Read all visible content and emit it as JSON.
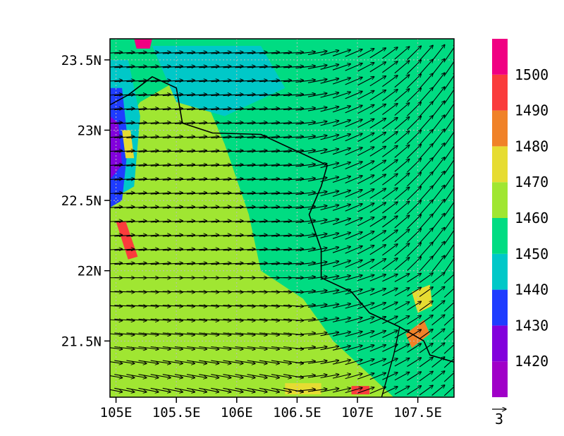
{
  "map": {
    "extent": {
      "lon_min": 104.95,
      "lon_max": 107.8,
      "lat_min": 21.1,
      "lat_max": 23.65
    },
    "x_ticks": [
      {
        "value": 105.0,
        "label": "105E"
      },
      {
        "value": 105.5,
        "label": "105.5E"
      },
      {
        "value": 106.0,
        "label": "106E"
      },
      {
        "value": 106.5,
        "label": "106.5E"
      },
      {
        "value": 107.0,
        "label": "107E"
      },
      {
        "value": 107.5,
        "label": "107.5E"
      }
    ],
    "y_ticks": [
      {
        "value": 21.5,
        "label": "21.5N"
      },
      {
        "value": 22.0,
        "label": "22N"
      },
      {
        "value": 22.5,
        "label": "22.5N"
      },
      {
        "value": 23.0,
        "label": "23N"
      },
      {
        "value": 23.5,
        "label": "23.5N"
      }
    ],
    "grid": true,
    "fill": {
      "levels": [
        {
          "label": "1420",
          "color": "#a000c8"
        },
        {
          "label": "1430",
          "color": "#8200dc"
        },
        {
          "label": "1440",
          "color": "#1e3cff"
        },
        {
          "label": "1450",
          "color": "#00c8c8"
        },
        {
          "label": "1460",
          "color": "#00dc82"
        },
        {
          "label": "1470",
          "color": "#a0e632"
        },
        {
          "label": "1480",
          "color": "#e6dc32"
        },
        {
          "label": "1490",
          "color": "#f08228"
        },
        {
          "label": "1500",
          "color": "#fa3c3c"
        },
        {
          "label": "",
          "color": "#f00082"
        }
      ],
      "base_color": "#a0e632",
      "regions": [
        {
          "name": "east-1450-zone",
          "color": "#00dc82",
          "poly": [
            [
              106.0,
              23.65
            ],
            [
              107.8,
              23.65
            ],
            [
              107.8,
              21.1
            ],
            [
              107.3,
              21.1
            ],
            [
              106.8,
              21.5
            ],
            [
              106.55,
              21.8
            ],
            [
              106.2,
              22.0
            ],
            [
              106.1,
              22.4
            ],
            [
              105.9,
              22.9
            ],
            [
              105.7,
              23.3
            ],
            [
              105.6,
              23.65
            ]
          ]
        },
        {
          "name": "north-1450-band",
          "color": "#00dc82",
          "poly": [
            [
              104.95,
              23.65
            ],
            [
              106.0,
              23.65
            ],
            [
              105.6,
              23.4
            ],
            [
              105.2,
              23.2
            ],
            [
              104.95,
              22.9
            ]
          ]
        },
        {
          "name": "north-cyan-area",
          "color": "#00c8c8",
          "poly": [
            [
              105.3,
              23.6
            ],
            [
              106.2,
              23.6
            ],
            [
              106.4,
              23.3
            ],
            [
              105.9,
              23.1
            ],
            [
              105.5,
              23.2
            ]
          ]
        },
        {
          "name": "west-edge-cyan",
          "color": "#00c8c8",
          "poly": [
            [
              104.95,
              23.5
            ],
            [
              105.1,
              23.5
            ],
            [
              105.2,
              23.1
            ],
            [
              105.15,
              22.6
            ],
            [
              104.95,
              22.5
            ]
          ]
        },
        {
          "name": "west-edge-blue",
          "color": "#1e3cff",
          "poly": [
            [
              104.95,
              23.3
            ],
            [
              105.05,
              23.3
            ],
            [
              105.1,
              22.9
            ],
            [
              105.05,
              22.5
            ],
            [
              104.95,
              22.45
            ]
          ]
        },
        {
          "name": "west-edge-purple",
          "color": "#8200dc",
          "poly": [
            [
              104.95,
              23.1
            ],
            [
              105.02,
              23.05
            ],
            [
              105.05,
              22.75
            ],
            [
              104.95,
              22.65
            ]
          ]
        },
        {
          "name": "west-red-streak",
          "color": "#fa3c3c",
          "poly": [
            [
              105.0,
              22.35
            ],
            [
              105.08,
              22.35
            ],
            [
              105.18,
              22.1
            ],
            [
              105.1,
              22.08
            ]
          ]
        },
        {
          "name": "west-yellow-streak",
          "color": "#e6dc32",
          "poly": [
            [
              105.05,
              23.0
            ],
            [
              105.12,
              23.0
            ],
            [
              105.15,
              22.8
            ],
            [
              105.08,
              22.8
            ]
          ]
        },
        {
          "name": "se-orange-spot",
          "color": "#f08228",
          "poly": [
            [
              107.4,
              21.55
            ],
            [
              107.55,
              21.65
            ],
            [
              107.6,
              21.55
            ],
            [
              107.45,
              21.45
            ]
          ]
        },
        {
          "name": "se-yellow-spot",
          "color": "#e6dc32",
          "poly": [
            [
              107.45,
              21.85
            ],
            [
              107.6,
              21.9
            ],
            [
              107.62,
              21.75
            ],
            [
              107.5,
              21.7
            ]
          ]
        },
        {
          "name": "south-yellow-spot",
          "color": "#e6dc32",
          "poly": [
            [
              106.4,
              21.2
            ],
            [
              106.7,
              21.2
            ],
            [
              106.7,
              21.12
            ],
            [
              106.4,
              21.12
            ]
          ]
        },
        {
          "name": "south-red-spot",
          "color": "#fa3c3c",
          "poly": [
            [
              106.95,
              21.18
            ],
            [
              107.1,
              21.18
            ],
            [
              107.1,
              21.12
            ],
            [
              106.95,
              21.12
            ]
          ]
        },
        {
          "name": "north-magenta-spot",
          "color": "#f00082",
          "poly": [
            [
              105.15,
              23.65
            ],
            [
              105.3,
              23.65
            ],
            [
              105.28,
              23.58
            ],
            [
              105.17,
              23.58
            ]
          ]
        }
      ]
    },
    "border": [
      [
        104.95,
        23.18
      ],
      [
        105.1,
        23.25
      ],
      [
        105.3,
        23.38
      ],
      [
        105.5,
        23.3
      ],
      [
        105.55,
        23.05
      ],
      [
        105.8,
        22.98
      ],
      [
        106.2,
        22.97
      ],
      [
        106.5,
        22.85
      ],
      [
        106.75,
        22.75
      ],
      [
        106.7,
        22.6
      ],
      [
        106.6,
        22.4
      ],
      [
        106.7,
        22.15
      ],
      [
        106.7,
        21.95
      ],
      [
        106.95,
        21.85
      ],
      [
        107.1,
        21.7
      ],
      [
        107.35,
        21.6
      ],
      [
        107.55,
        21.5
      ],
      [
        107.6,
        21.4
      ],
      [
        107.8,
        21.35
      ]
    ],
    "coastline": [
      [
        107.35,
        21.6
      ],
      [
        107.3,
        21.4
      ],
      [
        107.2,
        21.1
      ]
    ],
    "wind": {
      "u": 3.0,
      "v": 0.2,
      "turn_start_lon": 106.5,
      "turn_v": 2.5,
      "south_lat": 22.0,
      "south_v": -0.6
    }
  },
  "colorbar": {
    "labels": [
      "1420",
      "1430",
      "1440",
      "1450",
      "1460",
      "1470",
      "1480",
      "1490",
      "1500"
    ]
  },
  "reference_vector": {
    "label": "3"
  }
}
